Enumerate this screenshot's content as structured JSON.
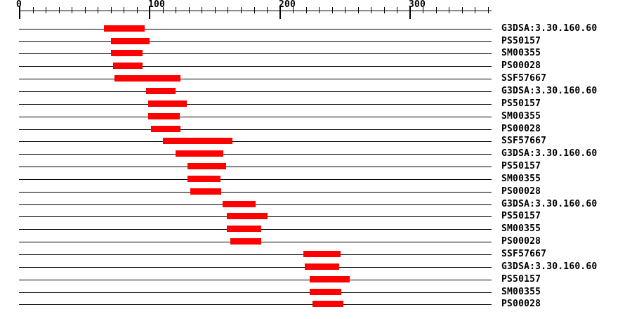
{
  "page": {
    "background": "#ffffff",
    "description": "Protein signature match plot: red interval bars on per-feature baselines under a residue-position axis"
  },
  "chart_data": {
    "type": "bar",
    "subtype": "horizontal-interval-track",
    "title": "",
    "xlabel": "",
    "ylabel": "",
    "axis": {
      "position": "top",
      "min": 0,
      "max": 360,
      "major_ticks": [
        0,
        100,
        200,
        300
      ],
      "major_tick_labels": [
        "0",
        "100",
        "200",
        "300"
      ],
      "minor_tick_step": 10,
      "grid": false
    },
    "legend": null,
    "colors": {
      "bar": "#ff0000",
      "axis": "#000000",
      "text": "#000000",
      "background": "#ffffff"
    },
    "rows": [
      {
        "label": "G3DSA:3.30.160.60",
        "start": 65,
        "end": 96
      },
      {
        "label": "PS50157",
        "start": 70,
        "end": 99
      },
      {
        "label": "SM00355",
        "start": 70,
        "end": 94
      },
      {
        "label": "PS00028",
        "start": 72,
        "end": 94
      },
      {
        "label": "SSF57667",
        "start": 73,
        "end": 123
      },
      {
        "label": "G3DSA:3.30.160.60",
        "start": 97,
        "end": 119
      },
      {
        "label": "PS50157",
        "start": 99,
        "end": 128
      },
      {
        "label": "SM00355",
        "start": 99,
        "end": 123
      },
      {
        "label": "PS00028",
        "start": 101,
        "end": 123
      },
      {
        "label": "SSF57667",
        "start": 110,
        "end": 163
      },
      {
        "label": "G3DSA:3.30.160.60",
        "start": 120,
        "end": 156
      },
      {
        "label": "PS50157",
        "start": 129,
        "end": 158
      },
      {
        "label": "SM00355",
        "start": 129,
        "end": 154
      },
      {
        "label": "PS00028",
        "start": 131,
        "end": 154
      },
      {
        "label": "G3DSA:3.30.160.60",
        "start": 156,
        "end": 181
      },
      {
        "label": "PS50157",
        "start": 159,
        "end": 190
      },
      {
        "label": "SM00355",
        "start": 159,
        "end": 185
      },
      {
        "label": "PS00028",
        "start": 162,
        "end": 185
      },
      {
        "label": "SSF57667",
        "start": 218,
        "end": 246
      },
      {
        "label": "G3DSA:3.30.160.60",
        "start": 219,
        "end": 245
      },
      {
        "label": "PS50157",
        "start": 223,
        "end": 253
      },
      {
        "label": "SM00355",
        "start": 223,
        "end": 247
      },
      {
        "label": "PS00028",
        "start": 225,
        "end": 248
      }
    ]
  }
}
